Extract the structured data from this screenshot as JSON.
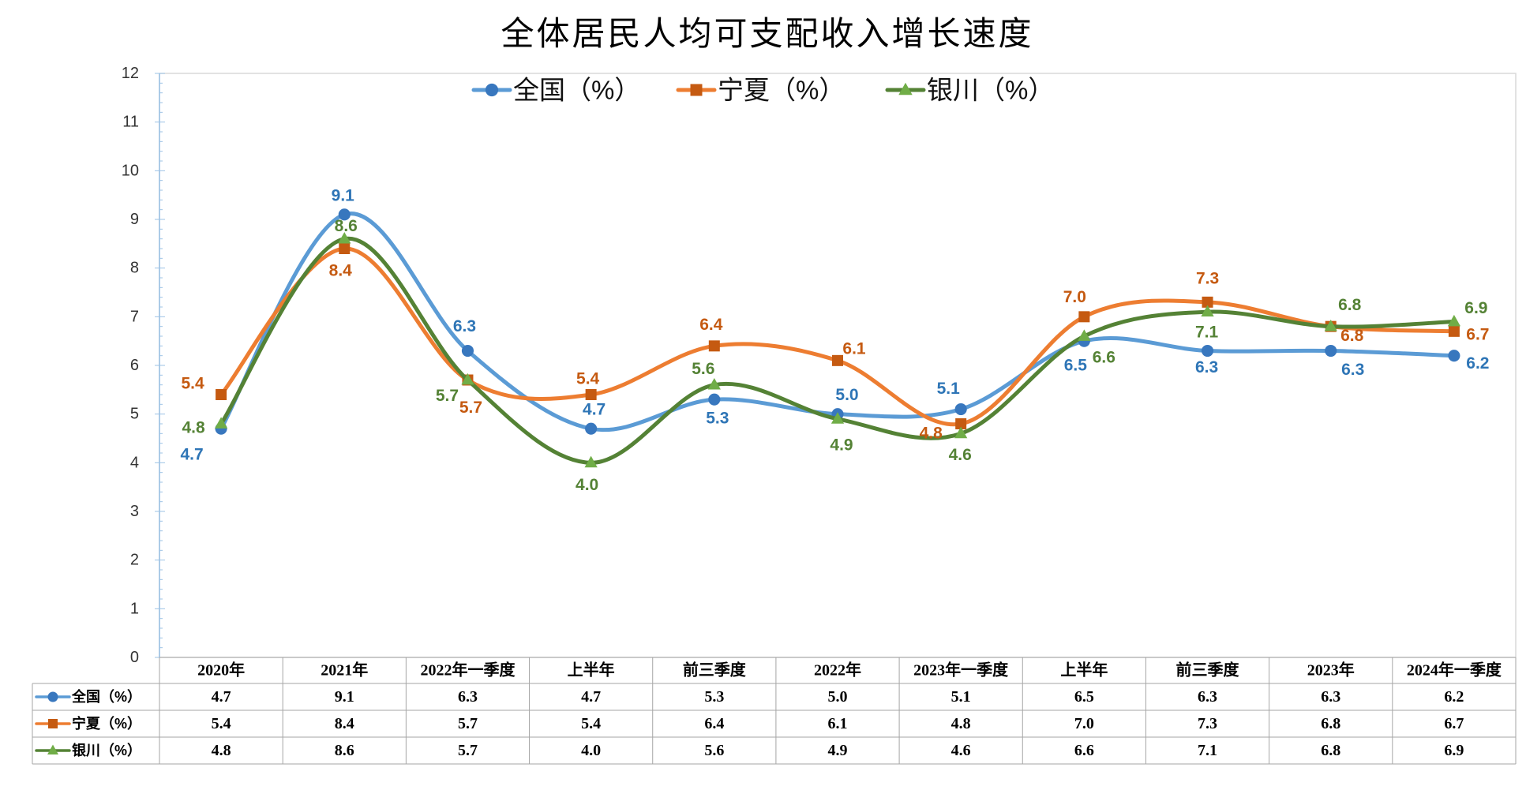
{
  "chart_data": {
    "type": "line",
    "title": "全体居民人均可支配收入增长速度",
    "categories": [
      "2020年",
      "2021年",
      "2022年一季度",
      "上半年",
      "前三季度",
      "2022年",
      "2023年一季度",
      "上半年",
      "前三季度",
      "2023年",
      "2024年一季度"
    ],
    "series": [
      {
        "name": "全国（%）",
        "marker": "circle",
        "line_color": "#5B9BD5",
        "marker_color": "#3877BE",
        "label_color": "#2E75B6",
        "values": [
          4.7,
          9.1,
          6.3,
          4.7,
          5.3,
          5.0,
          5.1,
          6.5,
          6.3,
          6.3,
          6.2
        ]
      },
      {
        "name": "宁夏（%）",
        "marker": "square",
        "line_color": "#ED7D31",
        "marker_color": "#C55A11",
        "label_color": "#C55A11",
        "values": [
          5.4,
          8.4,
          5.7,
          5.4,
          6.4,
          6.1,
          4.8,
          7.0,
          7.3,
          6.8,
          6.7
        ]
      },
      {
        "name": "银川（%）",
        "marker": "triangle",
        "line_color": "#548235",
        "marker_color": "#70AD47",
        "label_color": "#548235",
        "values": [
          4.8,
          8.6,
          5.7,
          4.0,
          5.6,
          4.9,
          4.6,
          6.6,
          7.1,
          6.8,
          6.9
        ]
      }
    ],
    "ylim": [
      0,
      12
    ],
    "yticks": [
      0,
      1,
      2,
      3,
      4,
      5,
      6,
      7,
      8,
      9,
      10,
      11,
      12
    ],
    "smooth": true,
    "grid": false,
    "legend": "top-center",
    "data_labels": true,
    "data_table": true
  }
}
